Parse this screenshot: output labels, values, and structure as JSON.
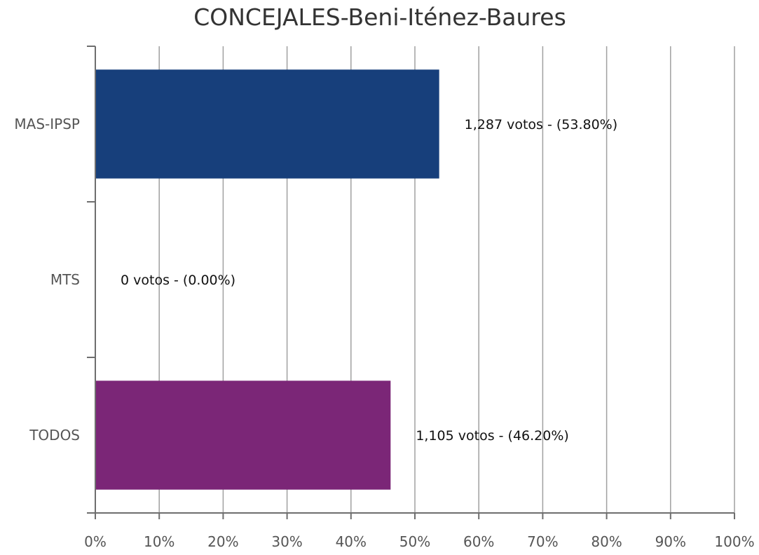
{
  "chart_data": {
    "type": "bar",
    "orientation": "horizontal",
    "title": "CONCEJALES-Beni-Iténez-Baures",
    "categories": [
      "MAS-IPSP",
      "MTS",
      "TODOS"
    ],
    "values": [
      53.8,
      0.0,
      46.2
    ],
    "votes": [
      1287,
      0,
      1105
    ],
    "data_labels": [
      "1,287 votos - (53.80%)",
      "0 votos - (0.00%)",
      "1,105 votos - (46.20%)"
    ],
    "colors": [
      "#173f7b",
      "#1f4e9a",
      "#7b2677"
    ],
    "xlim": [
      0,
      100
    ],
    "x_ticks": [
      0,
      10,
      20,
      30,
      40,
      50,
      60,
      70,
      80,
      90,
      100
    ],
    "x_tick_labels": [
      "0%",
      "10%",
      "20%",
      "30%",
      "40%",
      "50%",
      "60%",
      "70%",
      "80%",
      "90%",
      "100%"
    ],
    "grid": true,
    "legend": "none"
  }
}
